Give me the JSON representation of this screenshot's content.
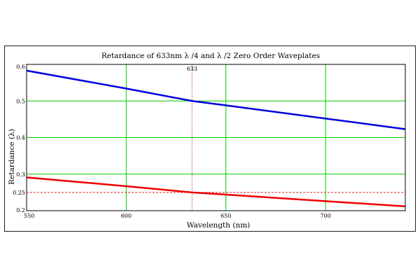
{
  "chart_data": {
    "type": "line",
    "title": "Retardance of 633nm λ /4 and λ /2 Zero Order Waveplates",
    "xlabel": "Wavelength (nm)",
    "ylabel": "Retardance (λ)",
    "xlim": [
      550,
      740
    ],
    "ylim": [
      0.2,
      0.6
    ],
    "x_ticks": [
      550,
      600,
      650,
      700
    ],
    "y_ticks": [
      0.2,
      0.25,
      0.3,
      0.4,
      0.5,
      0.6
    ],
    "x_tick_labels": [
      "550",
      "600",
      "650",
      "700"
    ],
    "y_tick_labels": [
      "0.2",
      "0.25",
      "0.3",
      "0.4",
      "0.5",
      "0.6"
    ],
    "grid": true,
    "grid_color": "#00cc00",
    "series": [
      {
        "color": "#0000dd",
        "x": [
          550,
          600,
          633,
          650,
          700,
          740
        ],
        "y": [
          0.583,
          0.534,
          0.5,
          0.488,
          0.452,
          0.423
        ]
      },
      {
        "color": "#ee0000",
        "x": [
          550,
          600,
          633,
          650,
          700,
          740
        ],
        "y": [
          0.291,
          0.267,
          0.25,
          0.244,
          0.226,
          0.212
        ]
      }
    ],
    "markers": {
      "vertical": {
        "x": 633,
        "label": "633",
        "color": "#dd2222"
      },
      "horizontal": {
        "y": 0.25,
        "color": "#dd2222"
      }
    }
  }
}
